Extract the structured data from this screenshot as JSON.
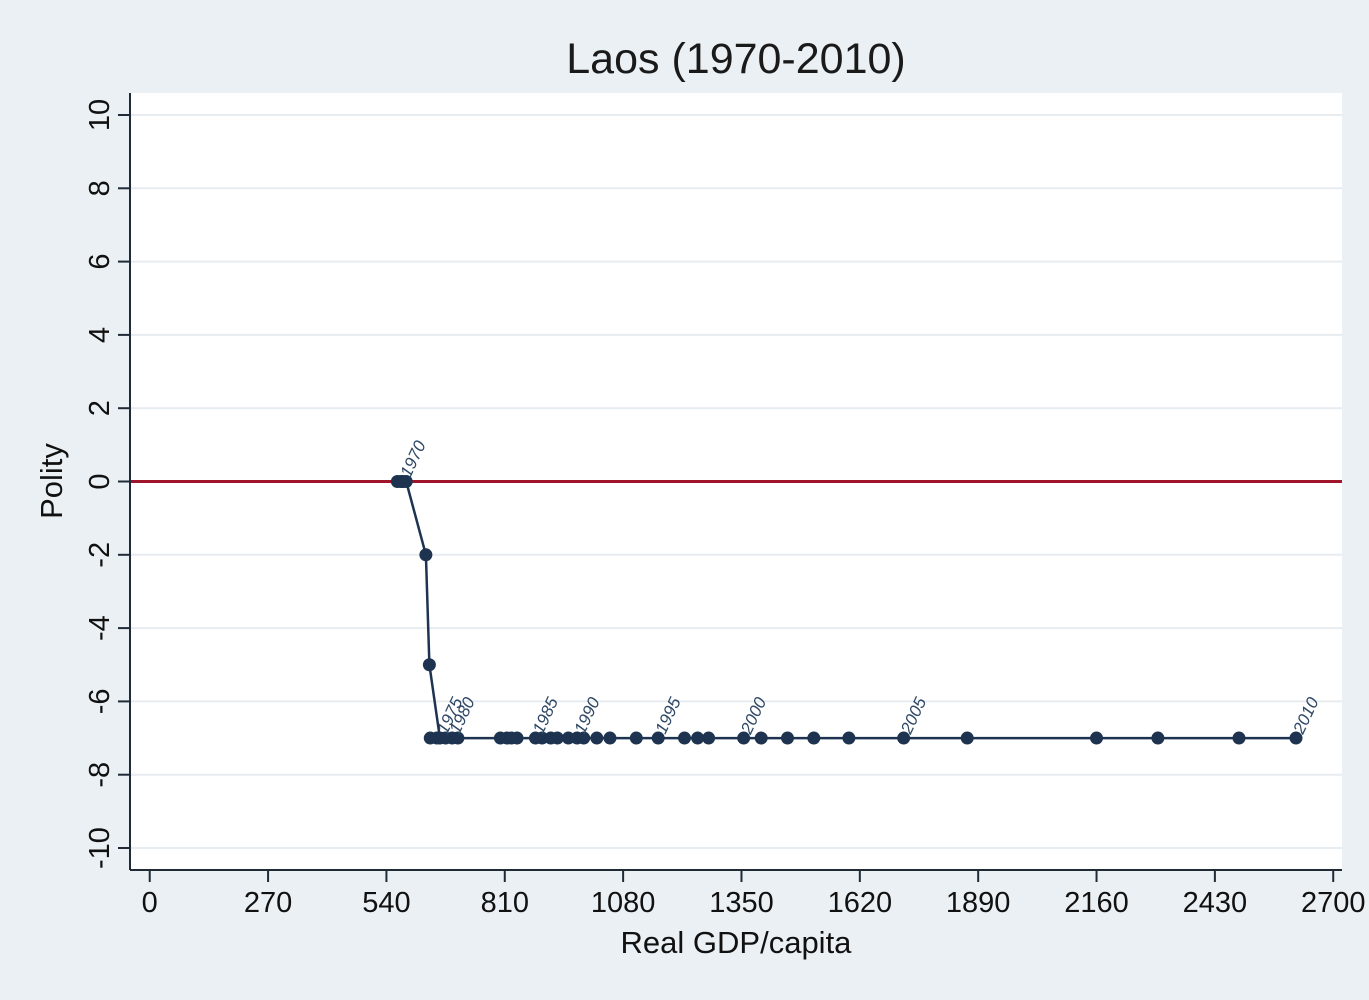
{
  "chart_data": {
    "type": "line",
    "title": "Laos (1970-2010)",
    "xlabel": "Real GDP/capita",
    "ylabel": "Polity",
    "xlim": [
      -45,
      2720
    ],
    "ylim": [
      -10.6,
      10.6
    ],
    "xticks": [
      0,
      270,
      540,
      810,
      1080,
      1350,
      1620,
      1890,
      2160,
      2430,
      2700
    ],
    "yticks": [
      -10,
      -8,
      -6,
      -4,
      -2,
      0,
      2,
      4,
      6,
      8,
      10
    ],
    "reference_line": {
      "y": 0,
      "color": "#a0152c"
    },
    "grid": true,
    "series_color": "#1d3350",
    "series": [
      {
        "points": [
          {
            "x": 578,
            "y": 0,
            "label": "1970"
          },
          {
            "x": 565,
            "y": 0
          },
          {
            "x": 573,
            "y": 0
          },
          {
            "x": 585,
            "y": 0
          },
          {
            "x": 630,
            "y": -2
          },
          {
            "x": 638,
            "y": -5
          },
          {
            "x": 662,
            "y": -7,
            "label": "1975"
          },
          {
            "x": 640,
            "y": -7
          },
          {
            "x": 655,
            "y": -7
          },
          {
            "x": 675,
            "y": -7
          },
          {
            "x": 690,
            "y": -7,
            "label": "1980"
          },
          {
            "x": 703,
            "y": -7
          },
          {
            "x": 800,
            "y": -7
          },
          {
            "x": 815,
            "y": -7
          },
          {
            "x": 825,
            "y": -7
          },
          {
            "x": 838,
            "y": -7
          },
          {
            "x": 880,
            "y": -7,
            "label": "1985"
          },
          {
            "x": 895,
            "y": -7
          },
          {
            "x": 915,
            "y": -7
          },
          {
            "x": 930,
            "y": -7
          },
          {
            "x": 955,
            "y": -7
          },
          {
            "x": 975,
            "y": -7,
            "label": "1990"
          },
          {
            "x": 990,
            "y": -7
          },
          {
            "x": 1020,
            "y": -7
          },
          {
            "x": 1050,
            "y": -7
          },
          {
            "x": 1110,
            "y": -7
          },
          {
            "x": 1160,
            "y": -7,
            "label": "1995"
          },
          {
            "x": 1220,
            "y": -7
          },
          {
            "x": 1250,
            "y": -7
          },
          {
            "x": 1275,
            "y": -7
          },
          {
            "x": 1355,
            "y": -7,
            "label": "2000"
          },
          {
            "x": 1395,
            "y": -7
          },
          {
            "x": 1455,
            "y": -7
          },
          {
            "x": 1515,
            "y": -7
          },
          {
            "x": 1595,
            "y": -7
          },
          {
            "x": 1720,
            "y": -7,
            "label": "2005"
          },
          {
            "x": 1865,
            "y": -7
          },
          {
            "x": 2160,
            "y": -7
          },
          {
            "x": 2300,
            "y": -7
          },
          {
            "x": 2485,
            "y": -7
          },
          {
            "x": 2615,
            "y": -7,
            "label": "2010"
          }
        ]
      }
    ]
  }
}
